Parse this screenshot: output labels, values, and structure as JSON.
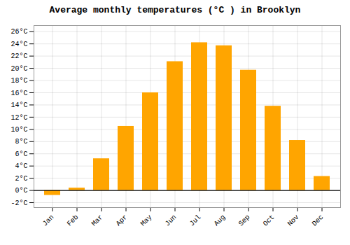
{
  "chart_data": {
    "type": "bar",
    "title": "Average monthly temperatures (°C ) in Brooklyn",
    "categories": [
      "Jan",
      "Feb",
      "Mar",
      "Apr",
      "May",
      "Jun",
      "Jul",
      "Aug",
      "Sep",
      "Oct",
      "Nov",
      "Dec"
    ],
    "values": [
      -0.8,
      0.4,
      5.2,
      10.5,
      16.0,
      21.1,
      24.2,
      23.7,
      19.7,
      13.8,
      8.2,
      2.3
    ],
    "color": "#FFA500",
    "ylim": [
      -2.8,
      27
    ],
    "yticks": [
      {
        "value": -2,
        "label": "-2°C"
      },
      {
        "value": 0,
        "label": "0°C"
      },
      {
        "value": 2,
        "label": "2°C"
      },
      {
        "value": 4,
        "label": "4°C"
      },
      {
        "value": 6,
        "label": "6°C"
      },
      {
        "value": 8,
        "label": "8°C"
      },
      {
        "value": 10,
        "label": "10°C"
      },
      {
        "value": 12,
        "label": "12°C"
      },
      {
        "value": 14,
        "label": "14°C"
      },
      {
        "value": 16,
        "label": "16°C"
      },
      {
        "value": 18,
        "label": "18°C"
      },
      {
        "value": 20,
        "label": "20°C"
      },
      {
        "value": 22,
        "label": "22°C"
      },
      {
        "value": 24,
        "label": "24°C"
      },
      {
        "value": 26,
        "label": "26°C"
      }
    ],
    "grid": true
  }
}
